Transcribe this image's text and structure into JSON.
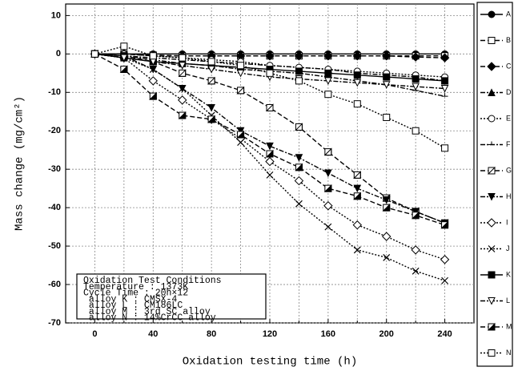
{
  "chart_data": {
    "type": "line",
    "xlabel": "Oxidation testing time (h)",
    "ylabel": "Mass change (mg/cm²)",
    "x": [
      0,
      20,
      40,
      60,
      80,
      100,
      120,
      140,
      160,
      180,
      200,
      220,
      240
    ],
    "xlim": [
      -20,
      260
    ],
    "ylim": [
      -70,
      13
    ],
    "xticks": [
      0,
      40,
      80,
      120,
      160,
      200,
      240
    ],
    "xminorticks": [
      20,
      60,
      100,
      140,
      180,
      220
    ],
    "yticks": [
      -70,
      -60,
      -50,
      -40,
      -30,
      -20,
      -10,
      0,
      10
    ],
    "grid": true,
    "legend": "right",
    "annotation": [
      "Oxidation Test Conditions",
      "Temperature : 1373K",
      "Cycle Time : 20h×12",
      " alloy K : CMSX-4",
      " alloy L : CM186LC",
      " alloy M : 3rd SC alloy",
      " alloy N : 14%CrCC alloy"
    ],
    "series": [
      {
        "name": "A",
        "color": "#000000",
        "marker": "circle",
        "fill": "filled",
        "dash": "solid",
        "values": [
          0,
          0,
          0,
          0,
          0,
          0,
          0,
          0,
          0,
          0,
          0,
          0,
          0
        ]
      },
      {
        "name": "B",
        "color": "#000000",
        "marker": "square",
        "fill": "open",
        "dash": "dash",
        "values": [
          0,
          0,
          -0.3,
          -0.5,
          -0.5,
          -0.5,
          -0.5,
          -0.5,
          -0.5,
          -0.5,
          -0.5,
          -0.5,
          -0.5
        ]
      },
      {
        "name": "C",
        "color": "#000000",
        "marker": "diamond",
        "fill": "filled",
        "dash": "dash",
        "values": [
          0,
          0,
          -0.5,
          -0.5,
          -0.5,
          -0.5,
          -0.5,
          -0.5,
          -0.5,
          -0.5,
          -0.5,
          -0.8,
          -1
        ]
      },
      {
        "name": "D",
        "color": "#000000",
        "marker": "triangle",
        "fill": "filled",
        "dash": "dashdot",
        "values": [
          0,
          -0.5,
          -1,
          -1.5,
          -2,
          -2.5,
          -3,
          -3.5,
          -4,
          -5,
          -5.5,
          -6,
          -7
        ]
      },
      {
        "name": "E",
        "color": "#000000",
        "marker": "circle",
        "fill": "open",
        "dash": "dot",
        "values": [
          0,
          0,
          -0.5,
          -1,
          -1.5,
          -2,
          -3,
          -3.5,
          -4,
          -4.5,
          -5,
          -5.5,
          -6
        ]
      },
      {
        "name": "F",
        "color": "#000000",
        "marker": "tick",
        "fill": "open",
        "dash": "dashdot",
        "values": [
          0,
          -0.5,
          -1.5,
          -2.5,
          -3,
          -4,
          -4.5,
          -5,
          -6,
          -7,
          -8,
          -9.5,
          -11
        ]
      },
      {
        "name": "G",
        "color": "#000000",
        "marker": "square",
        "fill": "half",
        "dash": "dash",
        "values": [
          0,
          -0.5,
          -2,
          -5,
          -7,
          -9.5,
          -14,
          -19,
          -25.5,
          -31.5,
          -37.5,
          -41,
          -44
        ]
      },
      {
        "name": "H",
        "color": "#000000",
        "marker": "tridown",
        "fill": "filled",
        "dash": "dashdot",
        "values": [
          0,
          -0.5,
          -4,
          -9,
          -14,
          -20,
          -24,
          -27,
          -31,
          -35,
          -38,
          -41,
          -44
        ]
      },
      {
        "name": "I",
        "color": "#000000",
        "marker": "diamond",
        "fill": "open",
        "dash": "dot",
        "values": [
          0,
          -1,
          -7,
          -12,
          -17,
          -22,
          -28,
          -33,
          -39.5,
          -44.5,
          -47.5,
          -51,
          -53.5
        ]
      },
      {
        "name": "J",
        "color": "#000000",
        "marker": "x",
        "fill": "open",
        "dash": "dot",
        "values": [
          0,
          -1,
          -4,
          -9,
          -16,
          -23,
          -31.5,
          -39,
          -45,
          -51,
          -53,
          -56.5,
          -59
        ]
      },
      {
        "name": "K",
        "color": "#000000",
        "marker": "square",
        "fill": "filled",
        "dash": "solid",
        "values": [
          0,
          -1,
          -2,
          -2.5,
          -3,
          -3.5,
          -4,
          -4.5,
          -5,
          -5.5,
          -6,
          -6.5,
          -7
        ]
      },
      {
        "name": "L",
        "color": "#000000",
        "marker": "tridown",
        "fill": "open",
        "dash": "dashdot",
        "values": [
          0,
          -1,
          -2,
          -3,
          -4,
          -5,
          -6,
          -6.5,
          -7,
          -7.5,
          -8,
          -8.5,
          -9
        ]
      },
      {
        "name": "M",
        "color": "#000000",
        "marker": "square",
        "fill": "halffilled",
        "dash": "dash",
        "values": [
          0,
          -4,
          -11,
          -16,
          -17,
          -21,
          -26,
          -29.5,
          -35,
          -37,
          -40,
          -42,
          -44.5
        ]
      },
      {
        "name": "N",
        "color": "#000000",
        "marker": "square",
        "fill": "open",
        "dash": "dot",
        "values": [
          0,
          2,
          -0.5,
          -1,
          -2,
          -3,
          -5,
          -7,
          -10.5,
          -13,
          -16.5,
          -20,
          -24.5
        ]
      }
    ]
  }
}
